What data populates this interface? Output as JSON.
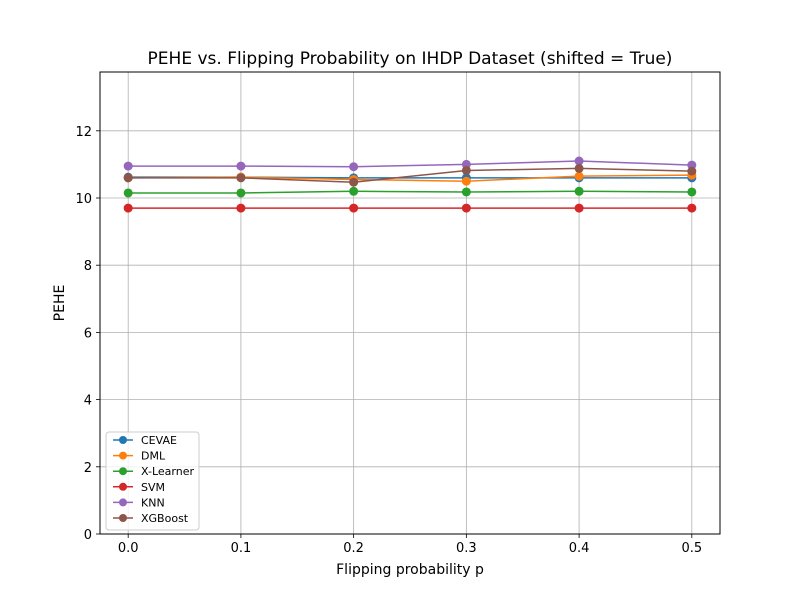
{
  "chart_data": {
    "type": "line",
    "title": "PEHE vs. Flipping Probability on IHDP Dataset (shifted = True)",
    "xlabel": "Flipping probability p",
    "ylabel": "PEHE",
    "x": [
      0.0,
      0.1,
      0.2,
      0.3,
      0.4,
      0.5
    ],
    "x_tick_labels": [
      "0.0",
      "0.1",
      "0.2",
      "0.3",
      "0.4",
      "0.5"
    ],
    "y_ticks": [
      0,
      2,
      4,
      6,
      8,
      10,
      12
    ],
    "y_tick_labels": [
      "0",
      "2",
      "4",
      "6",
      "8",
      "10",
      "12"
    ],
    "xlim": [
      -0.025,
      0.525
    ],
    "ylim": [
      0,
      13.75
    ],
    "grid": true,
    "legend_position": "lower-left",
    "series": [
      {
        "name": "CEVAE",
        "color": "#1f77b4",
        "values": [
          10.62,
          10.62,
          10.6,
          10.6,
          10.6,
          10.6
        ]
      },
      {
        "name": "DML",
        "color": "#ff7f0e",
        "values": [
          10.6,
          10.62,
          10.55,
          10.5,
          10.65,
          10.68
        ]
      },
      {
        "name": "X-Learner",
        "color": "#2ca02c",
        "values": [
          10.15,
          10.15,
          10.2,
          10.18,
          10.2,
          10.18
        ]
      },
      {
        "name": "SVM",
        "color": "#d62728",
        "values": [
          9.7,
          9.7,
          9.7,
          9.7,
          9.7,
          9.7
        ]
      },
      {
        "name": "KNN",
        "color": "#9467bd",
        "values": [
          10.95,
          10.95,
          10.93,
          11.0,
          11.1,
          10.98
        ]
      },
      {
        "name": "XGBoost",
        "color": "#8c564b",
        "values": [
          10.6,
          10.6,
          10.47,
          10.82,
          10.88,
          10.8
        ]
      }
    ]
  }
}
